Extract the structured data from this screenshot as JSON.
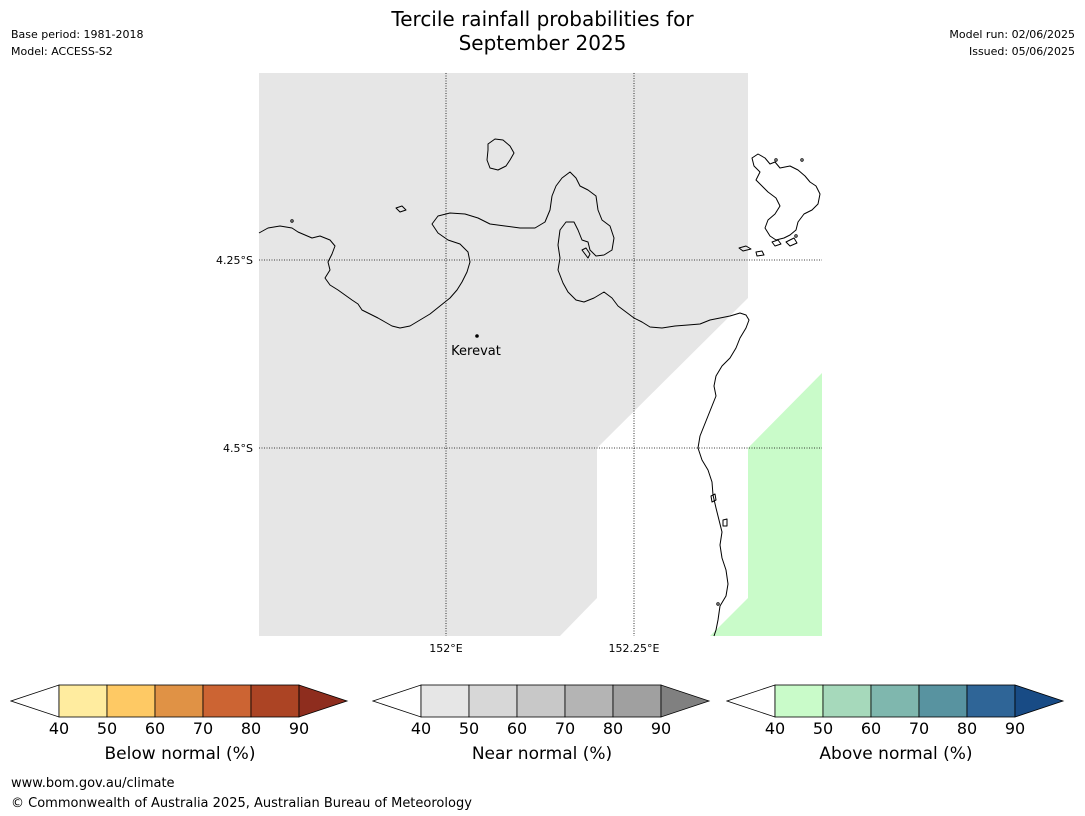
{
  "meta": {
    "base_period": "Base period: 1981-2018",
    "model": "Model: ACCESS-S2",
    "model_run": "Model run: 02/06/2025",
    "issued": "Issued: 05/06/2025"
  },
  "title": {
    "line1": "Tercile rainfall probabilities for",
    "line2": "September 2025"
  },
  "map": {
    "lat_labels": [
      "4.25°S",
      "4.5°S"
    ],
    "lon_labels": [
      "152°E",
      "152.25°E"
    ],
    "place": "Kerevat",
    "colors": {
      "near_normal_40_50": "#e6e6e6",
      "above_normal_40_50": "#c9fbc9",
      "coast": "#000000"
    }
  },
  "colorbars": [
    {
      "label": "Below normal (%)",
      "ticks": [
        "40",
        "50",
        "60",
        "70",
        "80",
        "90"
      ],
      "colors": [
        "#ffffff",
        "#ffec9f",
        "#fec964",
        "#e09245",
        "#cc6433",
        "#ac4424",
        "#8e2d1e"
      ]
    },
    {
      "label": "Near normal (%)",
      "ticks": [
        "40",
        "50",
        "60",
        "70",
        "80",
        "90"
      ],
      "colors": [
        "#ffffff",
        "#e6e6e6",
        "#d7d7d7",
        "#c8c8c8",
        "#b4b4b4",
        "#a0a0a0",
        "#808080"
      ]
    },
    {
      "label": "Above normal (%)",
      "ticks": [
        "40",
        "50",
        "60",
        "70",
        "80",
        "90"
      ],
      "colors": [
        "#ffffff",
        "#c9fbc9",
        "#a6d9bb",
        "#7fb7ae",
        "#5893a0",
        "#2f6597",
        "#184b85"
      ]
    }
  ],
  "footer": {
    "url": "www.bom.gov.au/climate",
    "copyright": "© Commonwealth of Australia 2025, Australian Bureau of Meteorology"
  }
}
